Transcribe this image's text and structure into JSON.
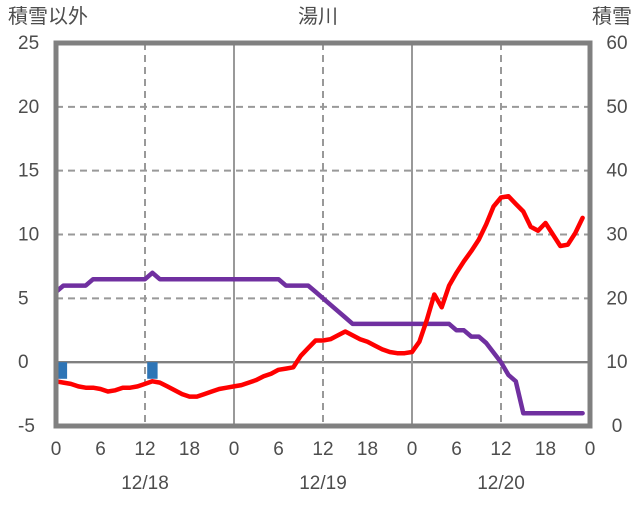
{
  "header": {
    "left_axis_title": "積雪以外",
    "title": "湯川",
    "right_axis_title": "積雪"
  },
  "chart_data": {
    "type": "line",
    "title": "湯川",
    "left_axis": {
      "label": "積雪以外",
      "min": -5,
      "max": 25,
      "ticks": [
        25,
        20,
        15,
        10,
        5,
        0,
        -5
      ]
    },
    "right_axis": {
      "label": "積雪",
      "min": 0,
      "max": 60,
      "ticks": [
        60,
        50,
        40,
        30,
        20,
        10,
        0
      ]
    },
    "x_axis": {
      "total_hours": 72,
      "ticks": [
        {
          "hour": 0,
          "label": "0"
        },
        {
          "hour": 6,
          "label": "6"
        },
        {
          "hour": 12,
          "label": "12"
        },
        {
          "hour": 18,
          "label": "18"
        },
        {
          "hour": 24,
          "label": "0"
        },
        {
          "hour": 30,
          "label": "6"
        },
        {
          "hour": 36,
          "label": "12"
        },
        {
          "hour": 42,
          "label": "18"
        },
        {
          "hour": 48,
          "label": "0"
        },
        {
          "hour": 54,
          "label": "6"
        },
        {
          "hour": 60,
          "label": "12"
        },
        {
          "hour": 66,
          "label": "18"
        },
        {
          "hour": 72,
          "label": "0"
        }
      ],
      "date_labels": [
        {
          "hour": 12,
          "label": "12/18"
        },
        {
          "hour": 36,
          "label": "12/19"
        },
        {
          "hour": 60,
          "label": "12/20"
        }
      ],
      "dashed_gridline_hours": [
        12,
        36,
        60
      ],
      "solid_gridline_hours": [
        24,
        48
      ]
    },
    "series": [
      {
        "id": "purple-line",
        "axis": "right",
        "color": "#7030a0",
        "width": 4.5,
        "values": [
          21,
          22,
          22,
          22,
          22,
          23,
          23,
          23,
          23,
          23,
          23,
          23,
          23,
          24,
          23,
          23,
          23,
          23,
          23,
          23,
          23,
          23,
          23,
          23,
          23,
          23,
          23,
          23,
          23,
          23,
          23,
          22,
          22,
          22,
          22,
          21,
          20,
          19,
          18,
          17,
          16,
          16,
          16,
          16,
          16,
          16,
          16,
          16,
          16,
          16,
          16,
          16,
          16,
          16,
          15,
          15,
          14,
          14,
          13,
          11.5,
          10,
          8,
          7,
          2,
          2,
          2,
          2,
          2,
          2,
          2,
          2,
          2
        ]
      },
      {
        "id": "red-line",
        "axis": "left",
        "color": "#ff0000",
        "width": 4.5,
        "values": [
          -1.5,
          -1.6,
          -1.7,
          -1.9,
          -2.0,
          -2.0,
          -2.1,
          -2.3,
          -2.2,
          -2.0,
          -2.0,
          -1.9,
          -1.7,
          -1.5,
          -1.6,
          -1.9,
          -2.2,
          -2.5,
          -2.7,
          -2.7,
          -2.5,
          -2.3,
          -2.1,
          -2.0,
          -1.9,
          -1.8,
          -1.6,
          -1.4,
          -1.1,
          -0.9,
          -0.6,
          -0.5,
          -0.4,
          0.5,
          1.1,
          1.7,
          1.7,
          1.8,
          2.1,
          2.4,
          2.1,
          1.8,
          1.6,
          1.3,
          1.0,
          0.8,
          0.7,
          0.7,
          0.8,
          1.6,
          3.3,
          5.3,
          4.3,
          6.0,
          7.0,
          7.9,
          8.7,
          9.6,
          10.8,
          12.2,
          12.9,
          13.0,
          12.4,
          11.8,
          10.6,
          10.3,
          10.9,
          10.0,
          9.1,
          9.2,
          10.1,
          11.3
        ]
      }
    ],
    "bars": {
      "axis": "left",
      "color": "#2e75b6",
      "width_hours": 1.4,
      "items": [
        {
          "hour": 0.8,
          "from": 0,
          "to": -1.3
        },
        {
          "hour": 13,
          "from": 0,
          "to": -1.3
        }
      ]
    },
    "colors": {
      "grid": "#999999",
      "zero_line": "#808080",
      "border": "#808080",
      "text": "#4d4d4d"
    }
  }
}
